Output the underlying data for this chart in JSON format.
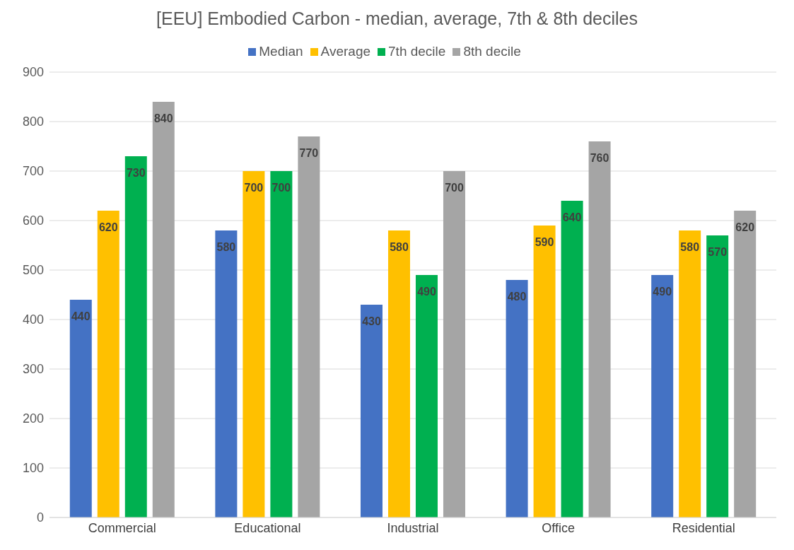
{
  "chart_data": {
    "type": "bar",
    "title": "[EEU] Embodied Carbon - median, average, 7th & 8th deciles",
    "categories": [
      "Commercial",
      "Educational",
      "Industrial",
      "Office",
      "Residential"
    ],
    "series": [
      {
        "name": "Median",
        "color": "#4472c4",
        "values": [
          440,
          580,
          430,
          480,
          490
        ]
      },
      {
        "name": "Average",
        "color": "#ffc000",
        "values": [
          620,
          700,
          580,
          590,
          580
        ]
      },
      {
        "name": "7th decile",
        "color": "#00b050",
        "values": [
          730,
          700,
          490,
          640,
          570
        ]
      },
      {
        "name": "8th decile",
        "color": "#a5a5a5",
        "values": [
          840,
          770,
          700,
          760,
          620
        ]
      }
    ],
    "ylim": [
      0,
      900
    ],
    "yticks": [
      0,
      100,
      200,
      300,
      400,
      500,
      600,
      700,
      800,
      900
    ],
    "grid": "y",
    "legend": "top",
    "data_labels": true
  }
}
